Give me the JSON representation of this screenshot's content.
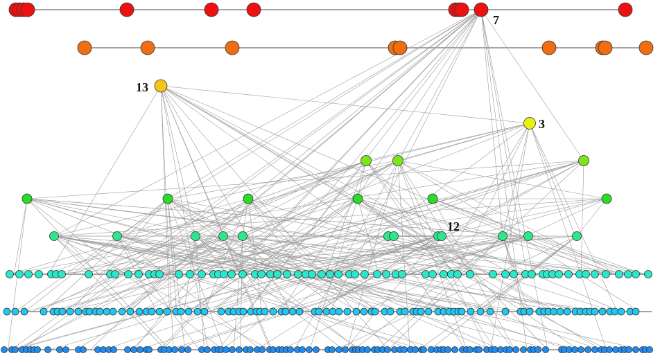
{
  "diagram": {
    "type": "layered-network",
    "colors": {
      "edge": "#9a9a9a",
      "level_line": "#6e6e6e",
      "node_stroke": "#333333",
      "level_0": "#ee1111",
      "level_1": "#ee6e11",
      "level_2": "#f5c518",
      "level_3": "#e4f212",
      "level_4": "#7ee51b",
      "level_5": "#28dc28",
      "level_6": "#2ee68c",
      "level_7": "#2ae8cc",
      "level_8": "#22c8f0",
      "level_9": "#1e8cf0"
    },
    "labels": {
      "hub_7": "7",
      "hub_13": "13",
      "hub_3": "3",
      "hub_12": "12"
    }
  }
}
